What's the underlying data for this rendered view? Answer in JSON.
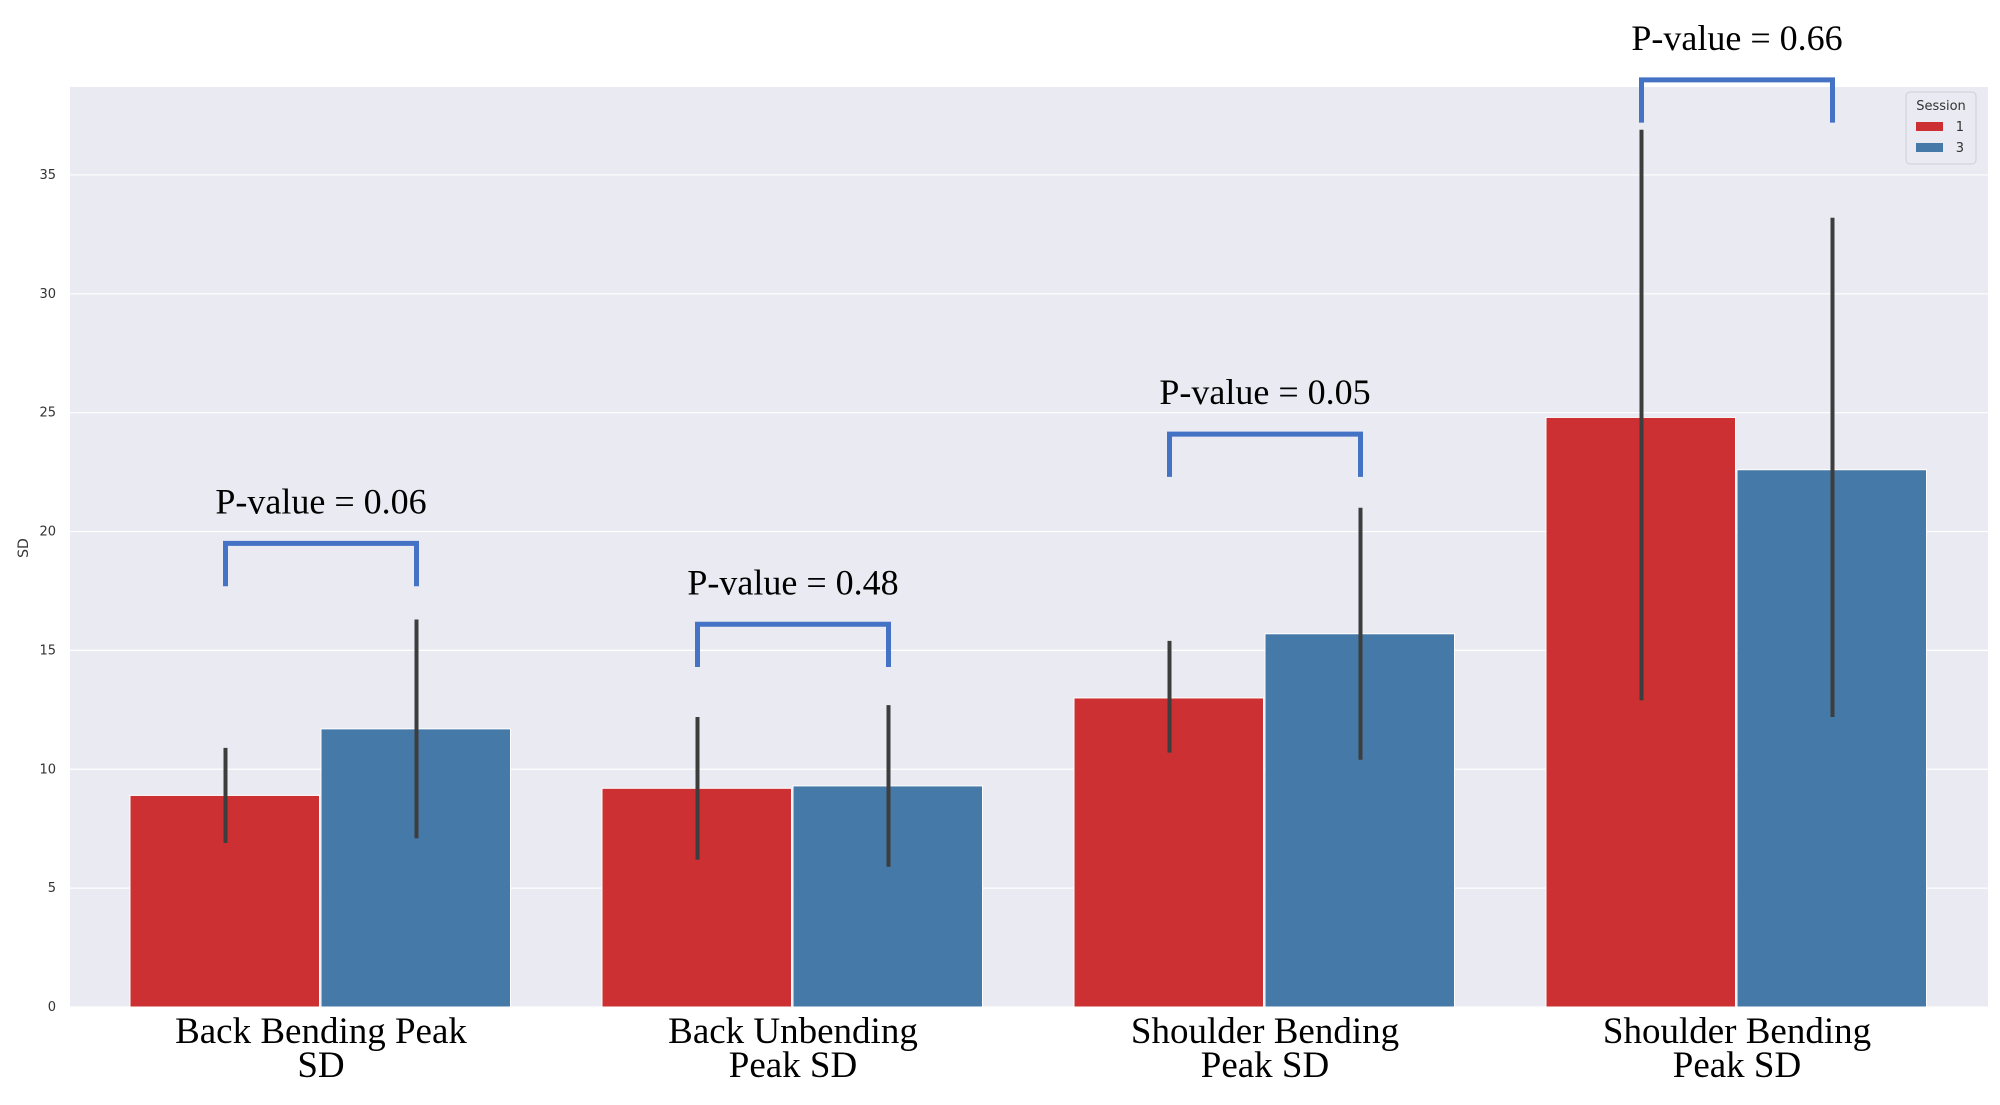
{
  "chart_data": {
    "type": "bar",
    "title": "",
    "xlabel": "",
    "ylabel": "SD",
    "ylim": [
      0,
      38.7
    ],
    "yticks": [
      0,
      5,
      10,
      15,
      20,
      25,
      30,
      35
    ],
    "grid": true,
    "legend": {
      "title": "Session",
      "placement": "top-right"
    },
    "categories": [
      [
        "Back Bending Peak",
        "SD"
      ],
      [
        "Back Unbending",
        "Peak SD"
      ],
      [
        "Shoulder Bending",
        "Peak SD"
      ],
      [
        "Shoulder Bending",
        "Peak SD"
      ]
    ],
    "series": [
      {
        "name": "1",
        "color": "#cc3033",
        "values": [
          8.9,
          9.2,
          13.0,
          24.8
        ],
        "err_low": [
          6.9,
          6.2,
          10.7,
          12.9
        ],
        "err_high": [
          10.9,
          12.2,
          15.4,
          36.9
        ]
      },
      {
        "name": "3",
        "color": "#4579a8",
        "values": [
          11.7,
          9.3,
          15.7,
          22.6
        ],
        "err_low": [
          7.1,
          5.9,
          10.4,
          12.2
        ],
        "err_high": [
          16.3,
          12.7,
          21.0,
          33.2
        ]
      }
    ],
    "annotations": [
      {
        "text": "P-value = 0.06",
        "bracket_y": 19.5,
        "bracket_drop": 1.8
      },
      {
        "text": "P-value = 0.48",
        "bracket_y": 16.1,
        "bracket_drop": 1.8
      },
      {
        "text": "P-value = 0.05",
        "bracket_y": 24.1,
        "bracket_drop": 1.8
      },
      {
        "text": "P-value = 0.66",
        "bracket_y": 39.0,
        "bracket_drop": 1.8
      }
    ],
    "bracket_color": "#4472c4"
  }
}
